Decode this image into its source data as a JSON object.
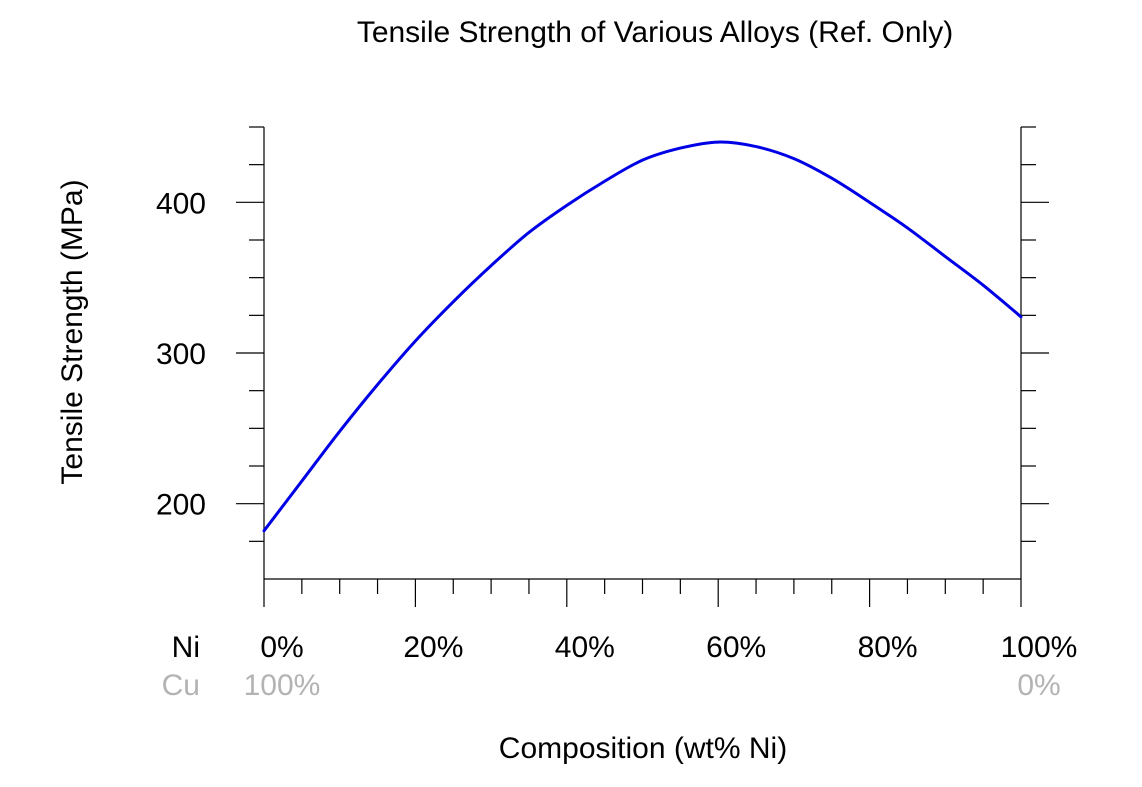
{
  "chart_data": {
    "type": "line",
    "title": "Tensile Strength of Various Alloys (Ref. Only)",
    "xlabel": "Composition (wt% Ni)",
    "ylabel": "Tensile Strength (MPa)",
    "xlim": [
      0,
      100
    ],
    "ylim": [
      150,
      450
    ],
    "y_major_ticks": [
      200,
      300,
      400
    ],
    "y_major_tick_labels": [
      "200",
      "300",
      "400"
    ],
    "y_minor_ticks": [
      175,
      225,
      250,
      275,
      325,
      350,
      375,
      425,
      450
    ],
    "x_major_ticks": [
      0,
      20,
      40,
      60,
      80,
      100
    ],
    "x_minor_ticks": [
      5,
      10,
      15,
      25,
      30,
      35,
      45,
      50,
      55,
      65,
      70,
      75,
      85,
      90,
      95
    ],
    "primary_component": {
      "name": "Ni",
      "tick_labels": [
        "0%",
        "20%",
        "40%",
        "60%",
        "80%",
        "100%"
      ],
      "color": "#000000"
    },
    "secondary_component": {
      "name": "Cu",
      "tick_labels": [
        "100%",
        "0%"
      ],
      "tick_positions": [
        0,
        100
      ],
      "color": "#b3b3b3"
    },
    "grid": false,
    "series": [
      {
        "color": "#0000e6",
        "x": [
          0,
          5,
          10,
          15,
          20,
          25,
          30,
          35,
          40,
          45,
          50,
          55,
          60,
          65,
          70,
          75,
          80,
          85,
          90,
          95,
          100
        ],
        "y": [
          182,
          215,
          248,
          279,
          308,
          334,
          358,
          380,
          398,
          414,
          428,
          436,
          440,
          437,
          429,
          416,
          400,
          383,
          364,
          345,
          324
        ]
      }
    ]
  }
}
